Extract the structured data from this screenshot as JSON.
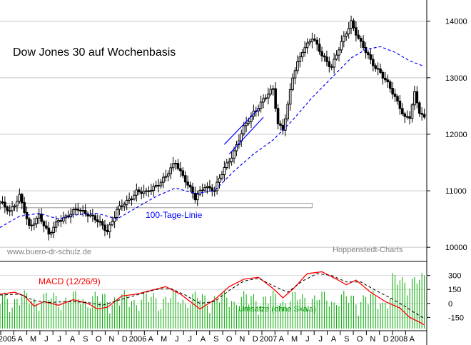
{
  "chart_data": [
    {
      "type": "candlestick",
      "title": "Dow Jones 30 auf Wochenbasis",
      "source_label": "Hoppenstedt-Charts",
      "watermark": "www.buero-dr-schulz.de",
      "ma_label": "100-Tage-Linie",
      "y_ticks": [
        10000,
        11000,
        12000,
        13000,
        14000
      ],
      "ylim": [
        9800,
        14300
      ],
      "x_ticks": [
        "2005",
        "A",
        "M",
        "J",
        "J",
        "A",
        "S",
        "O",
        "N",
        "D",
        "2006",
        "A",
        "M",
        "J",
        "J",
        "A",
        "S",
        "O",
        "N",
        "D",
        "2007",
        "A",
        "M",
        "J",
        "J",
        "A",
        "S",
        "O",
        "N",
        "D",
        "2008",
        "A"
      ],
      "price_path": [
        [
          0,
          10780
        ],
        [
          4,
          10650
        ],
        [
          8,
          10900
        ],
        [
          12,
          10350
        ],
        [
          16,
          10580
        ],
        [
          20,
          10200
        ],
        [
          24,
          10500
        ],
        [
          28,
          10550
        ],
        [
          32,
          10680
        ],
        [
          36,
          10600
        ],
        [
          40,
          10450
        ],
        [
          44,
          10300
        ],
        [
          48,
          10650
        ],
        [
          52,
          10800
        ],
        [
          56,
          11000
        ],
        [
          60,
          10950
        ],
        [
          64,
          11100
        ],
        [
          68,
          11250
        ],
        [
          72,
          11500
        ],
        [
          76,
          11200
        ],
        [
          80,
          10850
        ],
        [
          84,
          11100
        ],
        [
          88,
          11000
        ],
        [
          92,
          11400
        ],
        [
          96,
          11700
        ],
        [
          100,
          12100
        ],
        [
          104,
          12400
        ],
        [
          108,
          12600
        ],
        [
          112,
          12800
        ],
        [
          114,
          12200
        ],
        [
          116,
          12100
        ],
        [
          118,
          12500
        ],
        [
          120,
          13000
        ],
        [
          124,
          13500
        ],
        [
          128,
          13700
        ],
        [
          132,
          13400
        ],
        [
          136,
          13200
        ],
        [
          140,
          13600
        ],
        [
          144,
          14000
        ],
        [
          148,
          13600
        ],
        [
          152,
          13300
        ],
        [
          156,
          13100
        ],
        [
          160,
          12800
        ],
        [
          164,
          12500
        ],
        [
          166,
          12300
        ],
        [
          168,
          12300
        ],
        [
          170,
          12700
        ],
        [
          172,
          12400
        ],
        [
          174,
          12300
        ]
      ],
      "ma_path": [
        [
          0,
          10350
        ],
        [
          8,
          10550
        ],
        [
          16,
          10600
        ],
        [
          24,
          10500
        ],
        [
          32,
          10580
        ],
        [
          40,
          10600
        ],
        [
          48,
          10500
        ],
        [
          56,
          10700
        ],
        [
          64,
          10900
        ],
        [
          72,
          11050
        ],
        [
          80,
          10950
        ],
        [
          88,
          11000
        ],
        [
          96,
          11350
        ],
        [
          104,
          11650
        ],
        [
          112,
          11900
        ],
        [
          120,
          12250
        ],
        [
          128,
          12650
        ],
        [
          136,
          13000
        ],
        [
          144,
          13350
        ],
        [
          150,
          13500
        ],
        [
          156,
          13550
        ],
        [
          162,
          13450
        ],
        [
          168,
          13300
        ],
        [
          174,
          13200
        ]
      ],
      "channel_lines": [
        {
          "start": [
            92,
            11820
          ],
          "end": [
            106,
            12450
          ]
        },
        {
          "start": [
            94,
            11650
          ],
          "end": [
            108,
            12300
          ]
        }
      ],
      "support_box": {
        "y_low": 10700,
        "y_high": 10780
      }
    },
    {
      "type": "line_and_bar",
      "macd_label": "MACD (12/26/9)",
      "volume_label": "Umsätze (ohne Skala)",
      "y_ticks": [
        300,
        150,
        0,
        -150
      ],
      "ylim": [
        -270,
        420
      ],
      "macd_path": [
        [
          0,
          100
        ],
        [
          6,
          120
        ],
        [
          10,
          80
        ],
        [
          14,
          -30
        ],
        [
          18,
          20
        ],
        [
          24,
          -20
        ],
        [
          30,
          40
        ],
        [
          36,
          0
        ],
        [
          40,
          -60
        ],
        [
          44,
          -40
        ],
        [
          50,
          80
        ],
        [
          56,
          100
        ],
        [
          62,
          140
        ],
        [
          68,
          180
        ],
        [
          74,
          100
        ],
        [
          78,
          20
        ],
        [
          82,
          -60
        ],
        [
          88,
          40
        ],
        [
          94,
          180
        ],
        [
          100,
          260
        ],
        [
          106,
          280
        ],
        [
          112,
          160
        ],
        [
          116,
          60
        ],
        [
          120,
          150
        ],
        [
          126,
          320
        ],
        [
          132,
          340
        ],
        [
          138,
          260
        ],
        [
          142,
          200
        ],
        [
          146,
          250
        ],
        [
          152,
          120
        ],
        [
          158,
          20
        ],
        [
          164,
          -50
        ],
        [
          168,
          -150
        ],
        [
          172,
          -200
        ],
        [
          174,
          -230
        ]
      ],
      "signal_path": [
        [
          0,
          90
        ],
        [
          8,
          100
        ],
        [
          14,
          30
        ],
        [
          20,
          10
        ],
        [
          28,
          20
        ],
        [
          36,
          10
        ],
        [
          42,
          -20
        ],
        [
          48,
          30
        ],
        [
          56,
          90
        ],
        [
          64,
          150
        ],
        [
          70,
          160
        ],
        [
          76,
          90
        ],
        [
          82,
          0
        ],
        [
          88,
          20
        ],
        [
          94,
          140
        ],
        [
          100,
          240
        ],
        [
          106,
          270
        ],
        [
          112,
          190
        ],
        [
          118,
          120
        ],
        [
          124,
          240
        ],
        [
          130,
          320
        ],
        [
          136,
          300
        ],
        [
          142,
          230
        ],
        [
          148,
          230
        ],
        [
          154,
          140
        ],
        [
          160,
          60
        ],
        [
          166,
          -30
        ],
        [
          170,
          -100
        ],
        [
          174,
          -160
        ]
      ]
    }
  ]
}
